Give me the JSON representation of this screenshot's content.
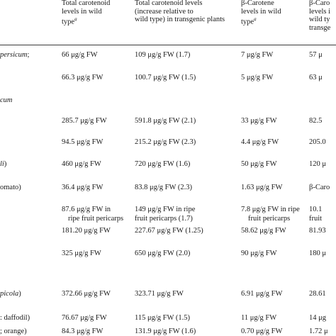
{
  "headers": {
    "col1": [
      "Total carotenoid",
      "levels in wild",
      "type"
    ],
    "col1_sup": "a",
    "col2": [
      "Total carotenoid levels",
      "(increase relative to",
      "wild type) in transgenic plants"
    ],
    "col3": [
      "β-Carotene",
      "levels in wild",
      "type"
    ],
    "col3_sup": "a",
    "col4": [
      "β-Caro",
      "levels i",
      "wild ty",
      "transge"
    ]
  },
  "left_labels": {
    "r1_italic": "persicum",
    "r1_suffix": ";",
    "r2_italic": "cum",
    "r3_italic": "li",
    "r3_suffix": ")",
    "r4": "omato)",
    "r5_italic": "picola",
    "r5_suffix": ")",
    "r6": ": daffodil)",
    "r7": "; orange)"
  },
  "rows": [
    [
      "66 μg/g FW",
      "109 μg/g FW (1.7)",
      "7 μg/g FW",
      "57 μ"
    ],
    [
      "66.3 μg/g FW",
      "100.7 μg/g FW (1.5)",
      "5 μg/g FW",
      "63 μ"
    ],
    [
      "285.7 μg/g FW",
      "591.8 μg/g FW (2.1)",
      "33 μg/g FW",
      "82.5"
    ],
    [
      "94.5 μg/g FW",
      "215.2 μg/g FW (2.3)",
      "4.4 μg/g FW",
      "205.0"
    ],
    [
      "460 μg/g FW",
      "720 μg/g FW (1.6)",
      "50 μg/g FW",
      "120 μ"
    ],
    [
      "36.4 μg/g FW",
      "83.8 μg/g FW (2.3)",
      "1.63 μg/g FW",
      "β-Caro"
    ],
    [
      "87.6 μg/g FW in",
      "149 μg/g FW in ripe",
      "7.8 μg/g FW in ripe",
      "10.1"
    ],
    [
      "ripe fruit pericarps",
      "fruit pericarps (1.7)",
      "fruit pericarps",
      "fruit"
    ],
    [
      "181.20 μg/g FW",
      "227.67 μg/g FW (1.25)",
      "58.62 μg/g FW",
      "81.93"
    ],
    [
      "325 μg/g FW",
      "650 μg/g FW (2.0)",
      "90 μg/g FW",
      "180 μ"
    ],
    [
      "372.66 μg/g FW",
      "323.71 μg/g FW",
      "6.91 μg/g FW",
      "28.61"
    ],
    [
      "76.67 μg/g FW",
      "115 μg/g FW (1.5)",
      "11 μg/g FW",
      "14 μg"
    ],
    [
      "84.3 μg/g FW",
      "131.9 μg/g FW (1.6)",
      "0.70 μg/g FW",
      "1.72 μ"
    ]
  ]
}
